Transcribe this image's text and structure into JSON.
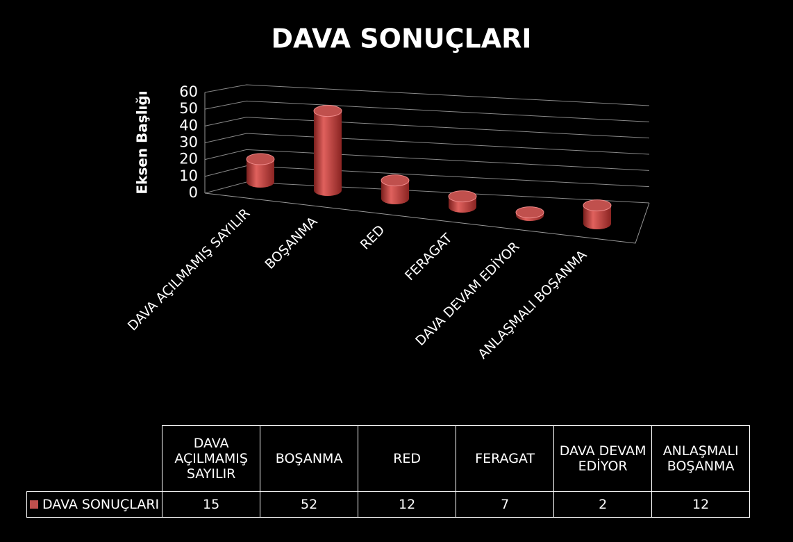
{
  "chart_data": {
    "type": "bar3d",
    "title": "DAVA SONUÇLARI",
    "y_label": "Eksen Başlığı",
    "categories": [
      "DAVA AÇILMAMIŞ SAYILIR",
      "BOŞANMA",
      "RED",
      "FERAGAT",
      "DAVA DEVAM EDİYOR",
      "ANLAŞMALI BOŞANMA"
    ],
    "series": [
      {
        "name": "DAVA SONUÇLARI",
        "color": "#c0504d",
        "values": [
          15,
          52,
          12,
          7,
          2,
          12
        ]
      }
    ],
    "ylim": [
      0,
      60
    ],
    "yticks": [
      0,
      10,
      20,
      30,
      40,
      50,
      60
    ],
    "grid": true,
    "data_table": true
  }
}
